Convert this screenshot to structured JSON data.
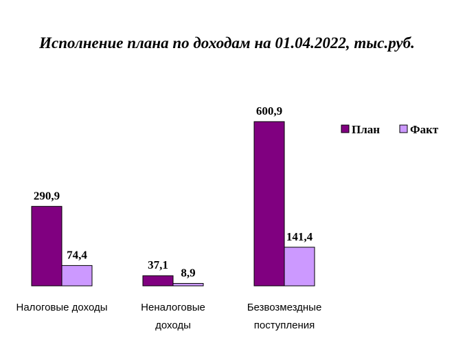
{
  "chart_data": {
    "type": "bar",
    "title": "Исполнение плана по доходам на 01.04.2022, тыс.руб.",
    "categories": [
      [
        "Налоговые доходы"
      ],
      [
        "Неналоговые",
        "доходы"
      ],
      [
        "Безвозмездные",
        "поступления"
      ]
    ],
    "series": [
      {
        "name": "План",
        "values": [
          290.9,
          37.1,
          600.9
        ],
        "labels": [
          "290,9",
          "37,1",
          "600,9"
        ],
        "color": "#800080"
      },
      {
        "name": "Факт",
        "values": [
          74.4,
          8.9,
          141.4
        ],
        "labels": [
          "74,4",
          "8,9",
          "141,4"
        ],
        "color": "#CC99FF"
      }
    ],
    "ylim": [
      0,
      600.9
    ],
    "grid": false,
    "legend": "top-right"
  }
}
